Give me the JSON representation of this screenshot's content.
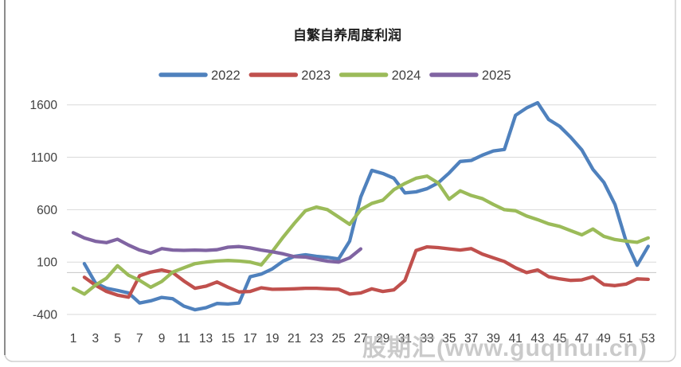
{
  "chart_data": {
    "type": "line",
    "title": "自繁自养周度利润",
    "xlim": [
      1,
      53
    ],
    "ylim": [
      -400,
      1600
    ],
    "yticks": [
      1600,
      1100,
      600,
      100,
      -400
    ],
    "xticks": [
      1,
      3,
      5,
      7,
      9,
      11,
      13,
      15,
      17,
      19,
      21,
      23,
      25,
      27,
      29,
      31,
      33,
      35,
      37,
      39,
      41,
      43,
      45,
      47,
      49,
      51,
      53
    ],
    "grid": "horizontal-only",
    "legend_position": "top",
    "x_unit": "week",
    "series": [
      {
        "name": "2022",
        "color": "#4F81BD",
        "values": [
          null,
          85,
          -100,
          -150,
          -170,
          -195,
          -290,
          -270,
          -237,
          -250,
          -320,
          -355,
          -335,
          -295,
          -300,
          -290,
          -40,
          -15,
          35,
          110,
          155,
          170,
          155,
          145,
          130,
          300,
          720,
          975,
          945,
          900,
          760,
          770,
          800,
          855,
          950,
          1060,
          1070,
          1120,
          1160,
          1175,
          1500,
          1570,
          1620,
          1460,
          1395,
          1290,
          1170,
          985,
          860,
          650,
          300,
          70,
          250
        ]
      },
      {
        "name": "2023",
        "color": "#C0504D",
        "values": [
          null,
          -45,
          -120,
          -180,
          -215,
          -235,
          -30,
          5,
          25,
          0,
          -80,
          -150,
          -130,
          -90,
          -140,
          -185,
          -180,
          -145,
          -160,
          -158,
          -155,
          -150,
          -150,
          -155,
          -160,
          -205,
          -195,
          -155,
          -180,
          -165,
          -75,
          210,
          245,
          238,
          226,
          215,
          228,
          176,
          140,
          105,
          45,
          0,
          25,
          -40,
          -60,
          -75,
          -70,
          -40,
          -115,
          -125,
          -110,
          -60,
          -65
        ]
      },
      {
        "name": "2024",
        "color": "#9BBB59",
        "values": [
          -150,
          -205,
          -120,
          -55,
          65,
          -25,
          -75,
          -140,
          -85,
          5,
          45,
          85,
          100,
          110,
          115,
          110,
          100,
          73,
          200,
          340,
          470,
          590,
          625,
          600,
          530,
          460,
          600,
          660,
          690,
          790,
          850,
          900,
          920,
          855,
          700,
          780,
          735,
          705,
          650,
          600,
          590,
          540,
          505,
          465,
          440,
          400,
          360,
          415,
          345,
          315,
          300,
          288,
          330
        ]
      },
      {
        "name": "2025",
        "color": "#8064A2",
        "values": [
          380,
          330,
          298,
          285,
          318,
          262,
          215,
          185,
          228,
          215,
          212,
          215,
          212,
          218,
          242,
          248,
          235,
          215,
          198,
          178,
          152,
          148,
          128,
          108,
          100,
          140,
          225
        ]
      }
    ]
  },
  "watermark": {
    "text": "股期汇(www.guqihui.cn)"
  },
  "colors": {
    "background": "#ffffff",
    "gridline": "#d9d9d9",
    "zero_axis": "#c6c6c6",
    "frame": "#d0d0d0",
    "frame_left_edge": "#8c8c8c",
    "tick_text": "#404040",
    "title_text": "#1f1f1f"
  }
}
